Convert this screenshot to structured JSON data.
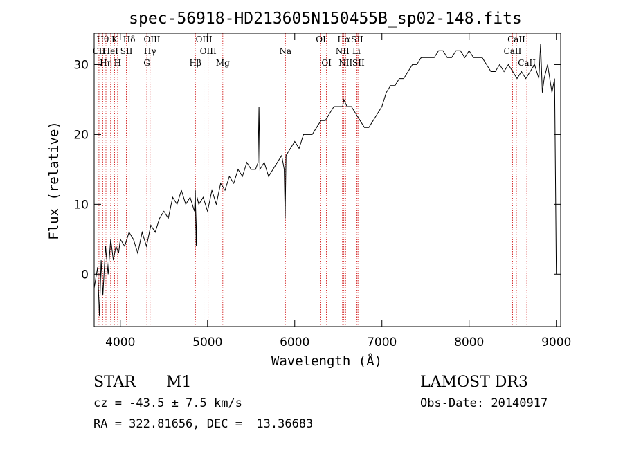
{
  "chart_data": {
    "type": "line",
    "title": "spec-56918-HD213605N150455B_sp02-148.fits",
    "xlabel": "Wavelength (Å)",
    "ylabel": "Flux (relative)",
    "xlim": [
      3700,
      9050
    ],
    "ylim": [
      -7.5,
      34.5
    ],
    "x_ticks": [
      4000,
      5000,
      6000,
      7000,
      8000,
      9000
    ],
    "x_tick_labels": [
      "4000",
      "5000",
      "6000",
      "7000",
      "8000",
      "9000"
    ],
    "y_ticks": [
      0,
      10,
      20,
      30
    ],
    "y_tick_labels": [
      "0",
      "10",
      "20",
      "30"
    ],
    "grid": false,
    "line_color": "#000000",
    "marker_color": "#cc0000",
    "series": [
      {
        "name": "flux",
        "x": [
          3700,
          3740,
          3760,
          3780,
          3800,
          3830,
          3860,
          3890,
          3920,
          3950,
          3980,
          4000,
          4050,
          4100,
          4150,
          4200,
          4250,
          4300,
          4350,
          4400,
          4450,
          4500,
          4550,
          4600,
          4650,
          4700,
          4750,
          4800,
          4850,
          4860,
          4870,
          4880,
          4900,
          4950,
          5000,
          5050,
          5100,
          5150,
          5200,
          5250,
          5300,
          5350,
          5400,
          5450,
          5500,
          5550,
          5580,
          5590,
          5600,
          5650,
          5700,
          5750,
          5800,
          5850,
          5880,
          5890,
          5895,
          5900,
          5950,
          6000,
          6050,
          6100,
          6150,
          6200,
          6250,
          6300,
          6350,
          6400,
          6450,
          6500,
          6550,
          6563,
          6600,
          6650,
          6700,
          6750,
          6800,
          6850,
          6900,
          6950,
          7000,
          7050,
          7100,
          7150,
          7200,
          7250,
          7300,
          7350,
          7400,
          7450,
          7500,
          7550,
          7600,
          7650,
          7700,
          7750,
          7800,
          7850,
          7900,
          7950,
          8000,
          8050,
          8100,
          8150,
          8200,
          8250,
          8300,
          8350,
          8400,
          8450,
          8500,
          8550,
          8600,
          8650,
          8700,
          8750,
          8800,
          8820,
          8840,
          8860,
          8900,
          8950,
          8980,
          9000
        ],
        "y": [
          -2,
          1,
          -6,
          2,
          -3,
          4,
          0,
          5,
          2,
          4,
          3,
          5,
          4,
          6,
          5,
          3,
          6,
          4,
          7,
          6,
          8,
          9,
          8,
          11,
          10,
          12,
          10,
          11,
          9,
          12,
          4,
          11,
          10,
          11,
          9,
          12,
          10,
          13,
          12,
          14,
          13,
          15,
          14,
          16,
          15,
          15,
          16,
          24,
          15,
          16,
          14,
          15,
          16,
          17,
          15,
          8,
          12,
          17,
          18,
          19,
          18,
          20,
          20,
          20,
          21,
          22,
          22,
          23,
          24,
          24,
          24,
          25,
          24,
          24,
          23,
          22,
          21,
          21,
          22,
          23,
          24,
          26,
          27,
          27,
          28,
          28,
          29,
          30,
          30,
          31,
          31,
          31,
          31,
          32,
          32,
          31,
          31,
          32,
          32,
          31,
          32,
          31,
          31,
          31,
          30,
          29,
          29,
          30,
          29,
          30,
          29,
          28,
          29,
          28,
          29,
          30,
          28,
          33,
          26,
          28,
          30,
          26,
          28,
          0
        ]
      }
    ],
    "line_markers": [
      {
        "label": "Hθ",
        "x": 3798,
        "row": 1
      },
      {
        "label": "CII",
        "x": 3755,
        "row": 2
      },
      {
        "label": "Hη",
        "x": 3835,
        "row": 3
      },
      {
        "label": "K",
        "x": 3934,
        "row": 1
      },
      {
        "label": "HeI",
        "x": 3889,
        "row": 2
      },
      {
        "label": "H",
        "x": 3969,
        "row": 3
      },
      {
        "label": "Hδ",
        "x": 4102,
        "row": 1
      },
      {
        "label": "SII",
        "x": 4070,
        "row": 2
      },
      {
        "label": "OIII",
        "x": 4363,
        "row": 1
      },
      {
        "label": "Hγ",
        "x": 4341,
        "row": 2
      },
      {
        "label": "G",
        "x": 4304,
        "row": 3
      },
      {
        "label": "OIII",
        "x": 4959,
        "row": 1
      },
      {
        "label": "OIII",
        "x": 5007,
        "row": 2
      },
      {
        "label": "Hβ",
        "x": 4861,
        "row": 3
      },
      {
        "label": "Mg",
        "x": 5175,
        "row": 3
      },
      {
        "label": "Na",
        "x": 5893,
        "row": 2
      },
      {
        "label": "OI",
        "x": 6300,
        "row": 1
      },
      {
        "label": "OI",
        "x": 6364,
        "row": 3
      },
      {
        "label": "Hα",
        "x": 6563,
        "row": 1
      },
      {
        "label": "NII",
        "x": 6548,
        "row": 2
      },
      {
        "label": "NII",
        "x": 6583,
        "row": 3
      },
      {
        "label": "SII",
        "x": 6716,
        "row": 1
      },
      {
        "label": "Li",
        "x": 6708,
        "row": 2
      },
      {
        "label": "SII",
        "x": 6731,
        "row": 3
      },
      {
        "label": "CaII",
        "x": 8542,
        "row": 1
      },
      {
        "label": "CaII",
        "x": 8498,
        "row": 2
      },
      {
        "label": "CaII",
        "x": 8662,
        "row": 3
      }
    ]
  },
  "info": {
    "object_class": "STAR",
    "subclass": "M1",
    "survey": "LAMOST DR3",
    "redshift_text": "cz = -43.5 ± 7.5 km/s",
    "obs_date_text": "Obs-Date: 20140917",
    "coords_text": "RA = 322.81656, DEC =  13.36683"
  }
}
